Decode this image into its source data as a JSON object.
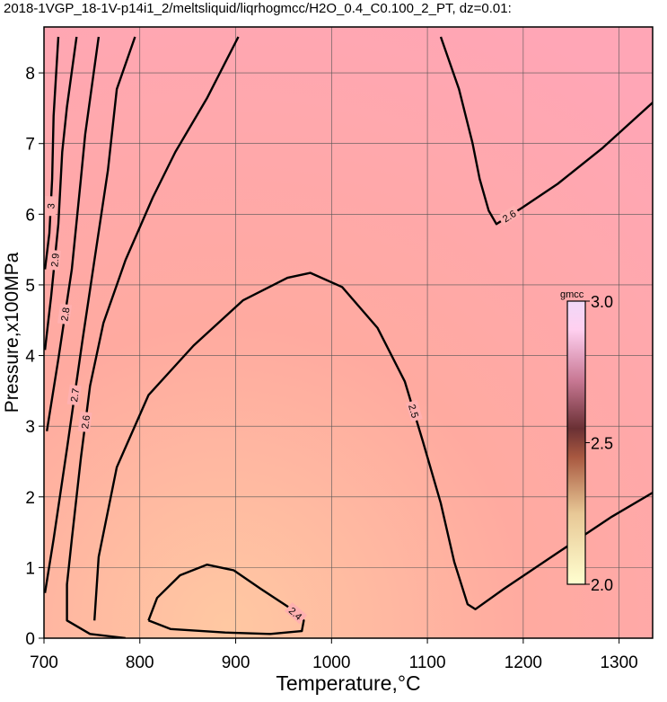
{
  "chart_data": {
    "type": "contour",
    "title": "2018-1VGP_18-1V-p14i1_2/meltsliquid/liqrhogmcc/H2O_0.4_C0.100_2_PT, dz=0.01:",
    "x_label": "Temperature,°C",
    "y_label": "Pressure,x100MPa",
    "xlim": [
      700,
      1335
    ],
    "ylim": [
      0,
      8.65
    ],
    "xticks": [
      700,
      800,
      900,
      1000,
      1100,
      1200,
      1300
    ],
    "yticks": [
      0,
      1,
      2,
      3,
      4,
      5,
      6,
      7,
      8
    ],
    "grid": true,
    "contours": [
      {
        "level": 2.4,
        "x": [
          809,
          818,
          842,
          870,
          898,
          926,
          954,
          971,
          969,
          936,
          889,
          832,
          809
        ],
        "y": [
          0.25,
          0.57,
          0.89,
          1.04,
          0.96,
          0.7,
          0.45,
          0.25,
          0.1,
          0.06,
          0.08,
          0.13,
          0.25
        ]
      },
      {
        "level": 2.5,
        "x": [
          752.6,
          757,
          776,
          809,
          856,
          907.5,
          954,
          978,
          1011,
          1048,
          1076.5,
          1095,
          1114,
          1128,
          1142,
          1150,
          1180,
          1236,
          1292.5,
          1335
        ],
        "y": [
          0.25,
          1.15,
          2.42,
          3.44,
          4.14,
          4.78,
          5.1,
          5.17,
          4.97,
          4.39,
          3.63,
          2.8,
          1.91,
          1.08,
          0.48,
          0.41,
          0.7,
          1.21,
          1.72,
          2.06
        ]
      },
      {
        "level": 2.6,
        "x": [
          902.8,
          870,
          837,
          813.6,
          785,
          762,
          748,
          738.5,
          729,
          724,
          724,
          748,
          785
        ],
        "y": [
          8.51,
          7.64,
          6.88,
          6.24,
          5.35,
          4.46,
          3.57,
          2.55,
          1.4,
          0.76,
          0.25,
          0.06,
          0
        ]
      },
      {
        "level": 2.6,
        "x": [
          1114,
          1133,
          1147,
          1154.5,
          1164,
          1172,
          1198.6,
          1236,
          1283,
          1335
        ],
        "y": [
          8.51,
          7.77,
          7.01,
          6.5,
          6.05,
          5.86,
          6.09,
          6.43,
          6.94,
          7.58
        ]
      },
      {
        "level": 2.7,
        "x": [
          795,
          776,
          766.7,
          752.6,
          740,
          724,
          710,
          701
        ],
        "y": [
          8.51,
          7.77,
          6.62,
          5.35,
          4.2,
          2.68,
          1.4,
          0.64
        ]
      },
      {
        "level": 2.8,
        "x": [
          757,
          743,
          738.5,
          729,
          715,
          703
        ],
        "y": [
          8.51,
          7.13,
          6.5,
          5.22,
          3.95,
          2.93
        ]
      },
      {
        "level": 2.9,
        "x": [
          734,
          724,
          719,
          715,
          707.5,
          701
        ],
        "y": [
          8.51,
          7.52,
          6.88,
          5.86,
          4.84,
          4.08
        ]
      },
      {
        "level": 3,
        "x": [
          715,
          710,
          708.5,
          705.6,
          701
        ],
        "y": [
          8.51,
          7.39,
          6.5,
          5.73,
          5.22
        ]
      }
    ],
    "colorbar": {
      "label": "gmcc",
      "lim": [
        2.0,
        3.0
      ],
      "ticks": [
        {
          "value": 3.0,
          "label": "3.0"
        },
        {
          "value": 2.5,
          "label": "2.5"
        },
        {
          "value": 2.0,
          "label": "2.0"
        }
      ]
    }
  }
}
